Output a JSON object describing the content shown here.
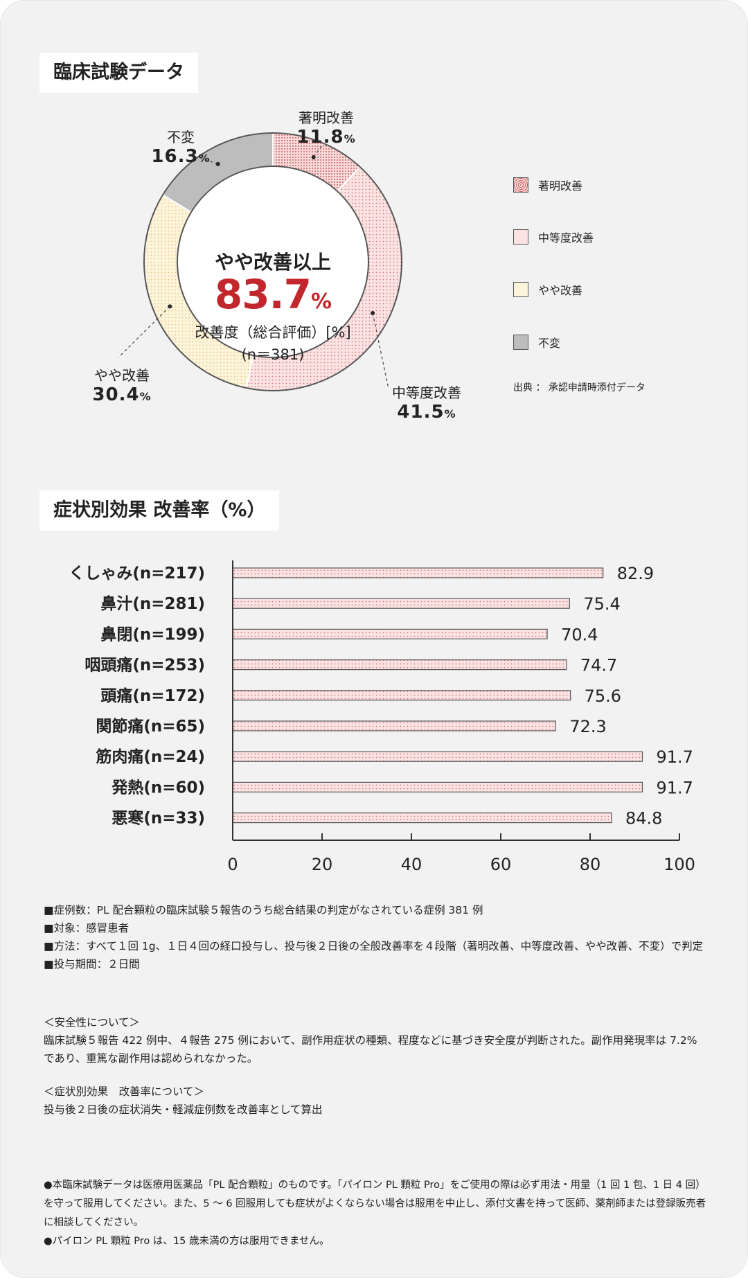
{
  "section1": {
    "title": "臨床試験データ",
    "donut": {
      "center_title": "やや改善以上",
      "center_value": "83.7",
      "center_unit": "%",
      "center_subtitle": "改善度（総合評価）[%]",
      "center_n": "(n＝381)"
    },
    "source": "出典 ： 承認申請時添付データ"
  },
  "section2": {
    "title": "症状別効果 改善率（%）"
  },
  "colors": {
    "red_accent": "#c1272d",
    "pink_fill": "#fbe2e2",
    "yellow_fill": "#fdf3d9",
    "gray_fill": "#bdbdbd"
  },
  "chart_data": [
    {
      "type": "pie",
      "title": "改善度（総合評価）[%]",
      "categories": [
        "著明改善",
        "中等度改善",
        "やや改善",
        "不変"
      ],
      "values": [
        11.8,
        41.5,
        30.4,
        16.3
      ],
      "unit": "%",
      "legend": [
        "著明改善",
        "中等度改善",
        "やや改善",
        "不変"
      ],
      "legend_position": "right",
      "colors": [
        "#f6cccc",
        "#f9dede",
        "#fcefd2",
        "#bdbdbd"
      ]
    },
    {
      "type": "bar",
      "orientation": "horizontal",
      "title": "症状別効果 改善率（%）",
      "categories": [
        "くしゃみ(n=217)",
        "鼻汁(n=281)",
        "鼻閉(n=199)",
        "咽頭痛(n=253)",
        "頭痛(n=172)",
        "関節痛(n=65)",
        "筋肉痛(n=24)",
        "発熱(n=60)",
        "悪寒(n=33)"
      ],
      "values": [
        82.9,
        75.4,
        70.4,
        74.7,
        75.6,
        72.3,
        91.7,
        91.7,
        84.8
      ],
      "value_labels": [
        "82.9",
        "75.4",
        "70.4",
        "74.7",
        "75.6",
        "72.3",
        "91.7",
        "91.7",
        "84.8"
      ],
      "xlim": [
        0,
        100
      ],
      "xticks": [
        "0",
        "20",
        "40",
        "60",
        "80",
        "100"
      ],
      "grid": false
    }
  ],
  "notes": [
    "■症例数：PL 配合顆粒の臨床試験５報告のうち総合結果の判定がなされている症例 381 例",
    "■対象：感冒患者",
    "■方法：すべて１回 1g、１日４回の経口投与し、投与後２日後の全般改善率を４段階（著明改善、中等度改善、やや改善、不変）で判定",
    "■投与期間：２日間"
  ],
  "safety": {
    "heading": "＜安全性について＞",
    "text": "臨床試験５報告 422 例中、４報告 275 例において、副作用症状の種類、程度などに基づき安全度が判断された。副作用発現率は 7.2% であり、重篤な副作用は認められなかった。"
  },
  "calc": {
    "heading": "＜症状別効果　改善率について＞",
    "text": "投与後２日後の症状消失・軽減症例数を改善率として算出"
  },
  "footer": [
    "●本臨床試験データは医療用医薬品「PL 配合顆粒」のものです。「パイロン PL 顆粒 Pro」をご使用の際は必ず用法・用量（1 回 1 包、1 日 4 回）を守って服用してください。また、5 ～ 6 回服用しても症状がよくならない場合は服用を中止し、添付文書を持って医師、薬剤師または登録販売者に相談してください。",
    "●パイロン PL 顆粒 Pro は、15 歳未満の方は服用できません。"
  ]
}
